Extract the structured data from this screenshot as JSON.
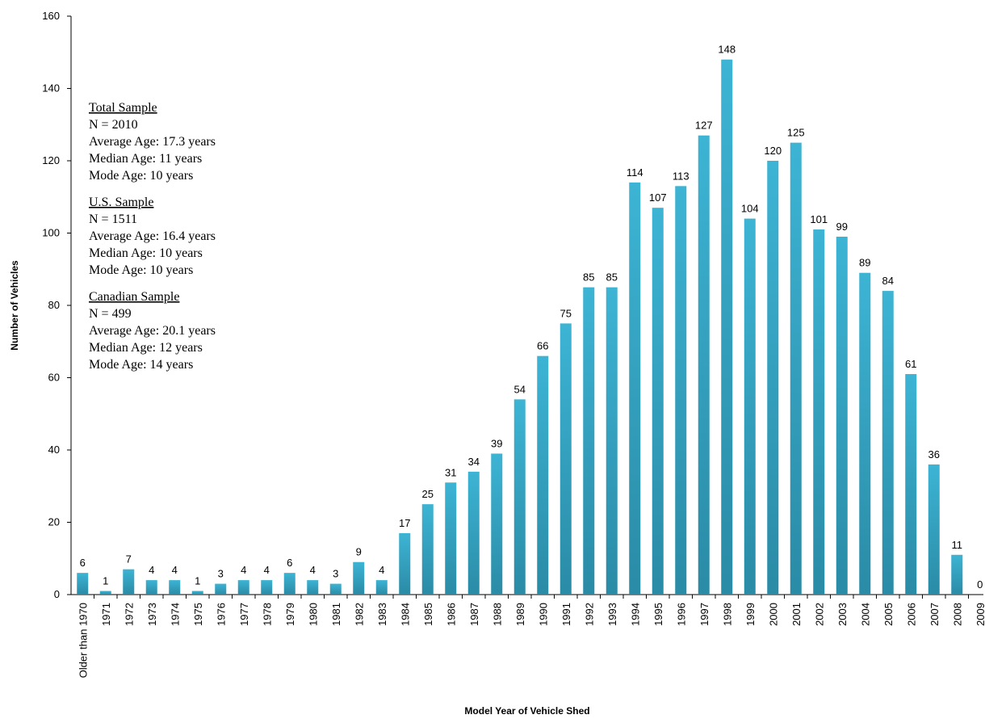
{
  "chart_data": {
    "type": "bar",
    "xlabel": "Model Year of Vehicle Shed",
    "ylabel": "Number of Vehicles",
    "ylim": [
      0,
      160
    ],
    "yticks": [
      0,
      20,
      40,
      60,
      80,
      100,
      120,
      140,
      160
    ],
    "grid": false,
    "bar_color": "#35a9c8",
    "categories": [
      "Older than 1970",
      "1971",
      "1972",
      "1973",
      "1974",
      "1975",
      "1976",
      "1977",
      "1978",
      "1979",
      "1980",
      "1981",
      "1982",
      "1983",
      "1984",
      "1985",
      "1986",
      "1987",
      "1988",
      "1989",
      "1990",
      "1991",
      "1992",
      "1993",
      "1994",
      "1995",
      "1996",
      "1997",
      "1998",
      "1999",
      "2000",
      "2001",
      "2002",
      "2003",
      "2004",
      "2005",
      "2006",
      "2007",
      "2008",
      "2009"
    ],
    "values": [
      6,
      1,
      7,
      4,
      4,
      1,
      3,
      4,
      4,
      6,
      4,
      3,
      9,
      4,
      17,
      25,
      31,
      34,
      39,
      54,
      66,
      75,
      85,
      85,
      114,
      107,
      113,
      127,
      148,
      104,
      120,
      125,
      101,
      99,
      89,
      84,
      61,
      36,
      11,
      0
    ],
    "annotation": [
      {
        "heading": "Total Sample",
        "lines": [
          "N = 2010",
          "Average Age: 17.3 years",
          "Median Age: 11 years",
          "Mode Age: 10 years"
        ]
      },
      {
        "heading": "U.S. Sample",
        "lines": [
          "N = 1511",
          "Average Age: 16.4 years",
          "Median Age: 10 years",
          "Mode Age: 10 years"
        ]
      },
      {
        "heading": "Canadian Sample",
        "lines": [
          "N = 499",
          "Average Age: 20.1 years",
          "Median Age: 12 years",
          "Mode Age: 14 years"
        ]
      }
    ]
  }
}
